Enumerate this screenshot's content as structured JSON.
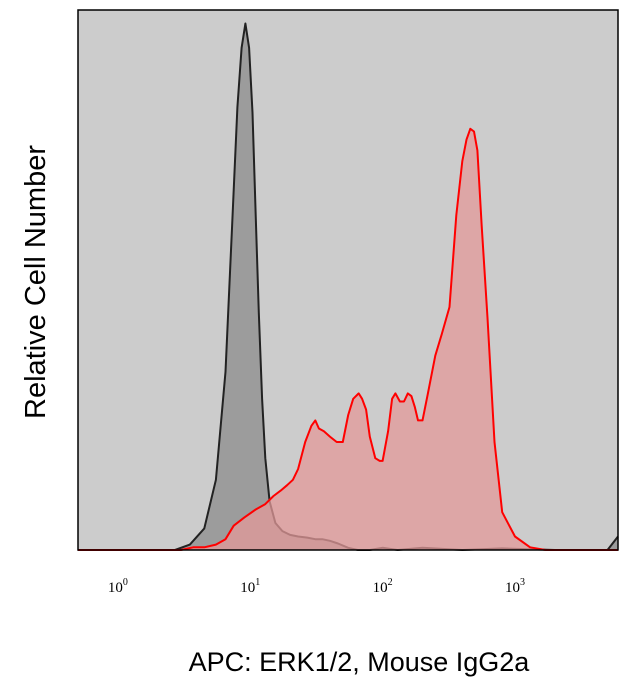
{
  "chart_data": {
    "type": "area",
    "xlabel": "APC: ERK1/2, Mouse IgG2a",
    "ylabel": "Relative Cell Number",
    "x_scale": "log",
    "xlim": [
      0.5,
      6000
    ],
    "ylim": [
      0,
      1
    ],
    "grid": false,
    "legend": "none",
    "x_ticks": [
      {
        "base": "10",
        "exp": "0",
        "value": 1
      },
      {
        "base": "10",
        "exp": "1",
        "value": 10
      },
      {
        "base": "10",
        "exp": "2",
        "value": 100
      },
      {
        "base": "10",
        "exp": "3",
        "value": 1000
      }
    ],
    "series": [
      {
        "color": "#222222",
        "fill": "#8c8c8c",
        "x": [
          0.5,
          2.7,
          3.5,
          4.5,
          5.5,
          6.5,
          7.3,
          8.0,
          8.6,
          9.2,
          9.8,
          10.4,
          11.0,
          11.6,
          12.3,
          13.0,
          14.0,
          15.5,
          17.5,
          20,
          23,
          27,
          31,
          35,
          40,
          46,
          55,
          65,
          80,
          100,
          130,
          200,
          400,
          800,
          2000,
          5000,
          6000
        ],
        "y": [
          0,
          0,
          0.01,
          0.04,
          0.13,
          0.33,
          0.6,
          0.82,
          0.93,
          0.975,
          0.93,
          0.81,
          0.62,
          0.44,
          0.28,
          0.17,
          0.09,
          0.05,
          0.035,
          0.028,
          0.025,
          0.023,
          0.02,
          0.02,
          0.017,
          0.012,
          0.004,
          0,
          0,
          0.004,
          0,
          0.004,
          0,
          0.003,
          0,
          0,
          0.025
        ]
      },
      {
        "color": "#ff0000",
        "fill": "#e39a9a",
        "x": [
          0.5,
          3.0,
          3.7,
          4.5,
          5.5,
          6.5,
          7.5,
          9,
          11,
          13,
          15,
          17,
          19,
          21,
          23,
          26,
          29,
          31,
          33,
          36,
          40,
          45,
          50,
          55,
          60,
          66,
          70,
          75,
          80,
          88,
          95,
          100,
          110,
          118,
          125,
          135,
          145,
          155,
          165,
          175,
          185,
          200,
          220,
          250,
          280,
          320,
          360,
          400,
          430,
          460,
          490,
          520,
          560,
          620,
          700,
          800,
          1000,
          1300,
          1700,
          2000,
          3000,
          5000,
          6000
        ],
        "y": [
          0,
          0,
          0.005,
          0.005,
          0.01,
          0.02,
          0.045,
          0.06,
          0.075,
          0.085,
          0.1,
          0.11,
          0.12,
          0.13,
          0.15,
          0.2,
          0.23,
          0.24,
          0.225,
          0.22,
          0.21,
          0.2,
          0.2,
          0.25,
          0.28,
          0.29,
          0.28,
          0.26,
          0.21,
          0.17,
          0.165,
          0.165,
          0.22,
          0.28,
          0.29,
          0.275,
          0.275,
          0.29,
          0.285,
          0.265,
          0.24,
          0.24,
          0.29,
          0.36,
          0.4,
          0.45,
          0.62,
          0.72,
          0.76,
          0.78,
          0.775,
          0.74,
          0.6,
          0.43,
          0.2,
          0.07,
          0.025,
          0.005,
          0,
          0,
          0,
          0,
          0
        ]
      }
    ]
  }
}
